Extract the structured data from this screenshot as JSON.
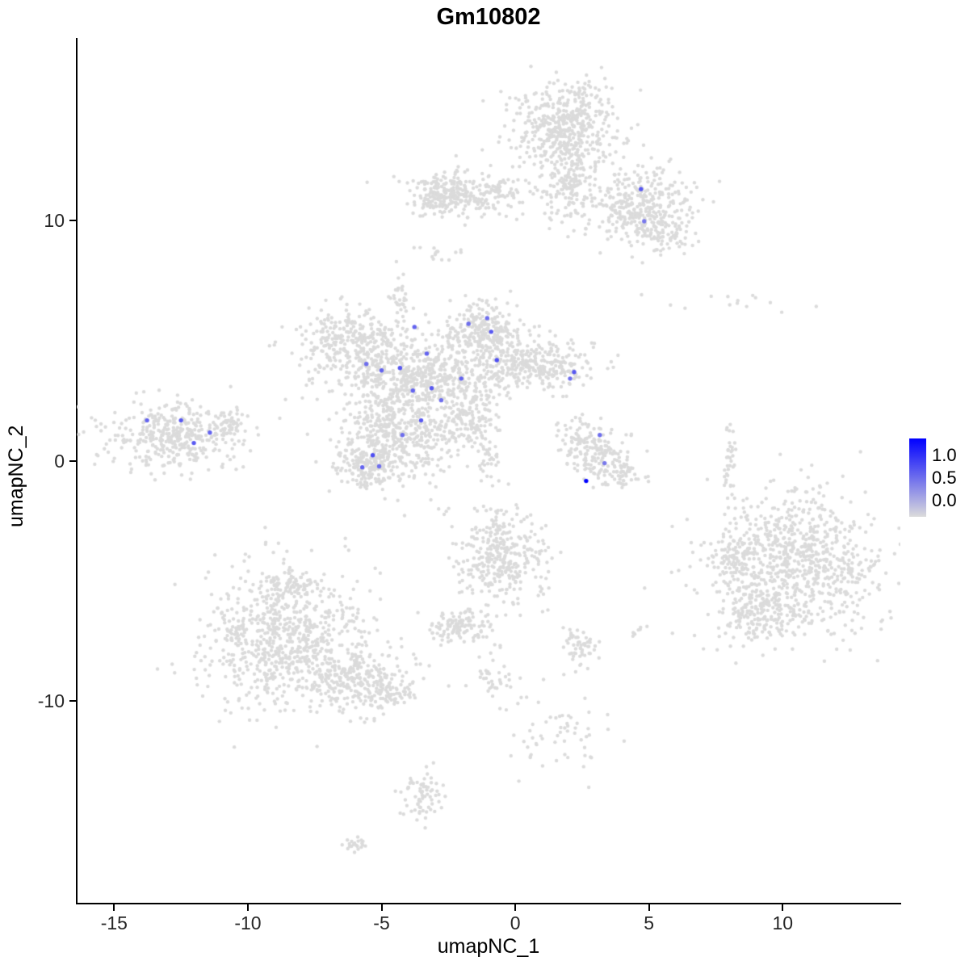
{
  "legend": {
    "ticks": [
      "1.0",
      "0.5",
      "0.0"
    ]
  },
  "chart_data": {
    "type": "scatter",
    "title": "Gm10802",
    "xlabel": "umapNC_1",
    "ylabel": "umapNC_2",
    "xlim": [
      -16.4,
      14.4
    ],
    "ylim": [
      -18.4,
      17.6
    ],
    "x_ticks": [
      -15,
      -10,
      -5,
      0,
      5,
      10
    ],
    "y_ticks": [
      -10,
      0,
      10
    ],
    "grid": false,
    "legend_position": "right",
    "point_color_low": "#DBDBDB",
    "point_color_high": "#0000FF",
    "colorbar_ticks": [
      1.0,
      0.5,
      0.0
    ],
    "background_clusters": [
      {
        "cx": 1.9,
        "cy": 13.9,
        "sdx": 0.95,
        "sdy": 0.9,
        "n": 480
      },
      {
        "cx": 1.95,
        "cy": 11.6,
        "sdx": 0.5,
        "sdy": 0.8,
        "n": 160
      },
      {
        "cx": 4.6,
        "cy": 10.6,
        "sdx": 0.95,
        "sdy": 0.8,
        "n": 330
      },
      {
        "cx": 5.5,
        "cy": 9.4,
        "sdx": 0.5,
        "sdy": 0.4,
        "n": 70
      },
      {
        "cx": -1.7,
        "cy": 11.2,
        "sdx": 1.15,
        "sdy": 0.45,
        "n": 260
      },
      {
        "cx": -2.95,
        "cy": 11.0,
        "sdx": 0.45,
        "sdy": 0.4,
        "n": 90
      },
      {
        "cx": -2.8,
        "cy": 8.6,
        "sdx": 0.3,
        "sdy": 0.3,
        "n": 14
      },
      {
        "cx": -4.35,
        "cy": 6.9,
        "sdx": 0.22,
        "sdy": 0.4,
        "n": 30
      },
      {
        "cx": -6.2,
        "cy": 5.0,
        "sdx": 1.0,
        "sdy": 0.65,
        "n": 300
      },
      {
        "cx": -1.1,
        "cy": 5.4,
        "sdx": 0.7,
        "sdy": 0.6,
        "n": 260
      },
      {
        "cx": -3.5,
        "cy": 3.4,
        "sdx": 1.6,
        "sdy": 0.9,
        "n": 700
      },
      {
        "cx": 0.85,
        "cy": 4.0,
        "sdx": 1.0,
        "sdy": 0.5,
        "n": 280
      },
      {
        "cx": -4.4,
        "cy": 1.0,
        "sdx": 1.15,
        "sdy": 0.9,
        "n": 450
      },
      {
        "cx": -5.5,
        "cy": -0.3,
        "sdx": 0.6,
        "sdy": 0.45,
        "n": 150
      },
      {
        "cx": -1.7,
        "cy": 1.7,
        "sdx": 0.5,
        "sdy": 0.5,
        "n": 100
      },
      {
        "cx": -1.0,
        "cy": 0.3,
        "sdx": 0.3,
        "sdy": 0.5,
        "n": 40
      },
      {
        "cx": -12.7,
        "cy": 1.0,
        "sdx": 1.25,
        "sdy": 0.7,
        "n": 380
      },
      {
        "cx": -10.8,
        "cy": 1.5,
        "sdx": 0.35,
        "sdy": 0.3,
        "n": 50
      },
      {
        "cx": 2.35,
        "cy": 1.0,
        "sdx": 0.35,
        "sdy": 0.4,
        "n": 60
      },
      {
        "cx": 3.25,
        "cy": 0.2,
        "sdx": 0.6,
        "sdy": 0.5,
        "n": 130
      },
      {
        "cx": 4.0,
        "cy": -0.7,
        "sdx": 0.4,
        "sdy": 0.3,
        "n": 45
      },
      {
        "cx": 8.5,
        "cy": 6.6,
        "sdx": 1.5,
        "sdy": 0.2,
        "n": 14
      },
      {
        "cx": 8.05,
        "cy": 0.1,
        "sdx": 0.12,
        "sdy": 0.8,
        "n": 35
      },
      {
        "cx": 10.5,
        "cy": -4.4,
        "sdx": 1.6,
        "sdy": 1.5,
        "n": 850
      },
      {
        "cx": 8.2,
        "cy": -4.0,
        "sdx": 0.4,
        "sdy": 0.5,
        "n": 80
      },
      {
        "cx": 9.1,
        "cy": -6.4,
        "sdx": 0.7,
        "sdy": 0.5,
        "n": 140
      },
      {
        "cx": -8.6,
        "cy": -7.4,
        "sdx": 1.5,
        "sdy": 1.4,
        "n": 780
      },
      {
        "cx": -5.9,
        "cy": -9.1,
        "sdx": 1.0,
        "sdy": 0.6,
        "n": 240
      },
      {
        "cx": -4.5,
        "cy": -9.7,
        "sdx": 0.4,
        "sdy": 0.35,
        "n": 60
      },
      {
        "cx": -8.3,
        "cy": -5.1,
        "sdx": 0.5,
        "sdy": 0.3,
        "n": 60
      },
      {
        "cx": -0.5,
        "cy": -4.0,
        "sdx": 0.8,
        "sdy": 1.0,
        "n": 340
      },
      {
        "cx": -2.0,
        "cy": -6.9,
        "sdx": 0.6,
        "sdy": 0.4,
        "n": 120
      },
      {
        "cx": -0.65,
        "cy": -9.1,
        "sdx": 0.5,
        "sdy": 0.6,
        "n": 40
      },
      {
        "cx": 1.6,
        "cy": -11.6,
        "sdx": 0.8,
        "sdy": 0.8,
        "n": 55
      },
      {
        "cx": 2.35,
        "cy": -7.7,
        "sdx": 0.35,
        "sdy": 0.4,
        "n": 55
      },
      {
        "cx": 4.6,
        "cy": -7.1,
        "sdx": 0.2,
        "sdy": 0.15,
        "n": 8
      },
      {
        "cx": -3.45,
        "cy": -13.9,
        "sdx": 0.4,
        "sdy": 0.5,
        "n": 70
      },
      {
        "cx": -5.9,
        "cy": -15.9,
        "sdx": 0.3,
        "sdy": 0.18,
        "n": 22
      },
      {
        "cx": -2.75,
        "cy": -2.0,
        "sdx": 0.2,
        "sdy": 0.2,
        "n": 5
      }
    ],
    "expressing_cells": [
      {
        "x": 4.7,
        "y": 11.31,
        "value": 0.6
      },
      {
        "x": 4.82,
        "y": 9.97,
        "value": 0.45
      },
      {
        "x": -13.77,
        "y": 1.68,
        "value": 0.55
      },
      {
        "x": -12.5,
        "y": 1.68,
        "value": 0.6
      },
      {
        "x": -12.02,
        "y": 0.74,
        "value": 0.6
      },
      {
        "x": -11.42,
        "y": 1.17,
        "value": 0.55
      },
      {
        "x": -5.57,
        "y": 4.03,
        "value": 0.5
      },
      {
        "x": -5.0,
        "y": 3.76,
        "value": 0.55
      },
      {
        "x": -4.31,
        "y": 3.86,
        "value": 0.6
      },
      {
        "x": -3.77,
        "y": 5.57,
        "value": 0.55
      },
      {
        "x": -3.31,
        "y": 4.46,
        "value": 0.55
      },
      {
        "x": -1.75,
        "y": 5.7,
        "value": 0.5
      },
      {
        "x": -1.05,
        "y": 5.94,
        "value": 0.5
      },
      {
        "x": -0.9,
        "y": 5.37,
        "value": 0.6
      },
      {
        "x": -0.69,
        "y": 4.19,
        "value": 0.65
      },
      {
        "x": -2.02,
        "y": 3.42,
        "value": 0.55
      },
      {
        "x": -3.13,
        "y": 3.02,
        "value": 0.6
      },
      {
        "x": -3.83,
        "y": 2.92,
        "value": 0.55
      },
      {
        "x": -2.77,
        "y": 2.52,
        "value": 0.5
      },
      {
        "x": -3.52,
        "y": 1.68,
        "value": 0.6
      },
      {
        "x": -4.22,
        "y": 1.07,
        "value": 0.5
      },
      {
        "x": -5.33,
        "y": 0.23,
        "value": 0.65
      },
      {
        "x": -5.09,
        "y": -0.23,
        "value": 0.5
      },
      {
        "x": -5.72,
        "y": -0.27,
        "value": 0.55
      },
      {
        "x": 2.2,
        "y": 3.69,
        "value": 0.6
      },
      {
        "x": 2.05,
        "y": 3.42,
        "value": 0.5
      },
      {
        "x": 3.16,
        "y": 1.07,
        "value": 0.5
      },
      {
        "x": 3.34,
        "y": -0.1,
        "value": 0.45
      },
      {
        "x": 2.65,
        "y": -0.84,
        "value": 1.0
      }
    ]
  }
}
